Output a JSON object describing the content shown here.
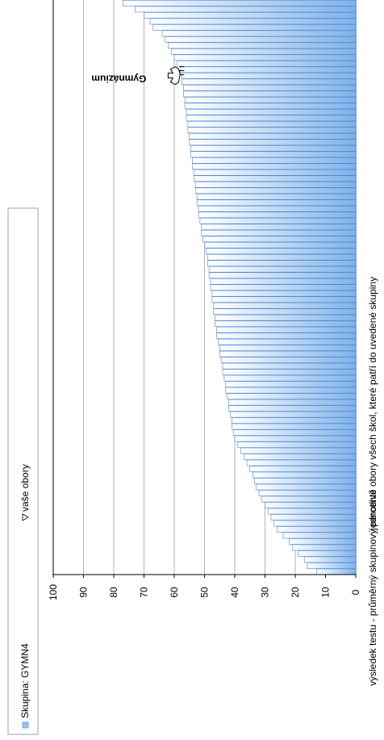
{
  "chart_data": {
    "type": "bar",
    "orientation": "horizontal",
    "xlabel": "jednotlivé obory všech škol, které patří do uvedené skupiny",
    "ylabel": "výsledek testu - průměrný skupinový percentil",
    "ylim": [
      0,
      100
    ],
    "yticks": [
      0,
      10,
      20,
      30,
      40,
      50,
      60,
      70,
      80,
      90,
      100
    ],
    "grid": true,
    "legend": {
      "placement": "top",
      "entries": [
        {
          "label": "Skupina: GYMN4",
          "marker": "square",
          "color": "#9cc3f0"
        },
        {
          "label": "vaše obory",
          "marker": "triangle",
          "color": "#ffffff"
        }
      ]
    },
    "series": [
      {
        "name": "Skupina: GYMN4",
        "color": "#9cc3f0",
        "values": [
          77,
          73,
          70,
          68,
          67,
          64,
          63,
          62,
          61,
          60,
          59,
          58,
          57.5,
          57.5,
          57,
          57,
          56.5,
          56.5,
          56,
          56,
          55.5,
          55.5,
          55,
          55,
          54.5,
          54.5,
          54,
          54,
          53.5,
          53.5,
          53,
          53,
          52.5,
          52.5,
          52,
          52,
          51.5,
          51,
          51,
          50.5,
          50,
          49.5,
          49,
          49,
          48.5,
          48.5,
          48,
          48,
          47.5,
          47.5,
          47,
          47,
          46.5,
          46.5,
          46,
          46,
          45.5,
          45,
          45,
          44.5,
          44,
          44,
          43.5,
          43,
          43,
          42.5,
          42,
          42,
          41.5,
          41,
          41,
          40.5,
          40,
          39,
          38,
          37,
          36,
          35,
          34,
          33.5,
          33,
          32,
          31,
          30,
          29,
          28,
          27,
          26,
          24,
          22,
          21,
          19,
          17,
          16,
          13
        ]
      }
    ],
    "highlights": [
      {
        "label": "Gymnázium",
        "value": 57.5
      }
    ]
  }
}
